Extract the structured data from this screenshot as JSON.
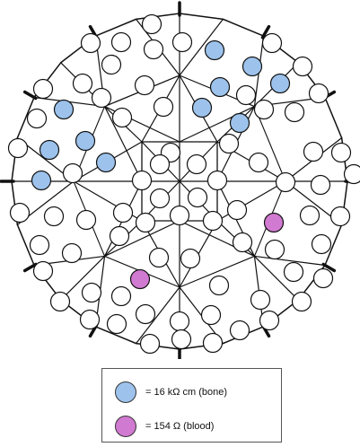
{
  "colors": {
    "bone": "#9dc3ec",
    "blood": "#d17ad1",
    "node_default": "#ffffff",
    "line": "#111111"
  },
  "legend": {
    "items": [
      {
        "label": "= 16 kΩ cm (bone)",
        "color": "#9dc3ec"
      },
      {
        "label": "= 154 Ω (blood)",
        "color": "#d17ad1"
      }
    ]
  }
}
